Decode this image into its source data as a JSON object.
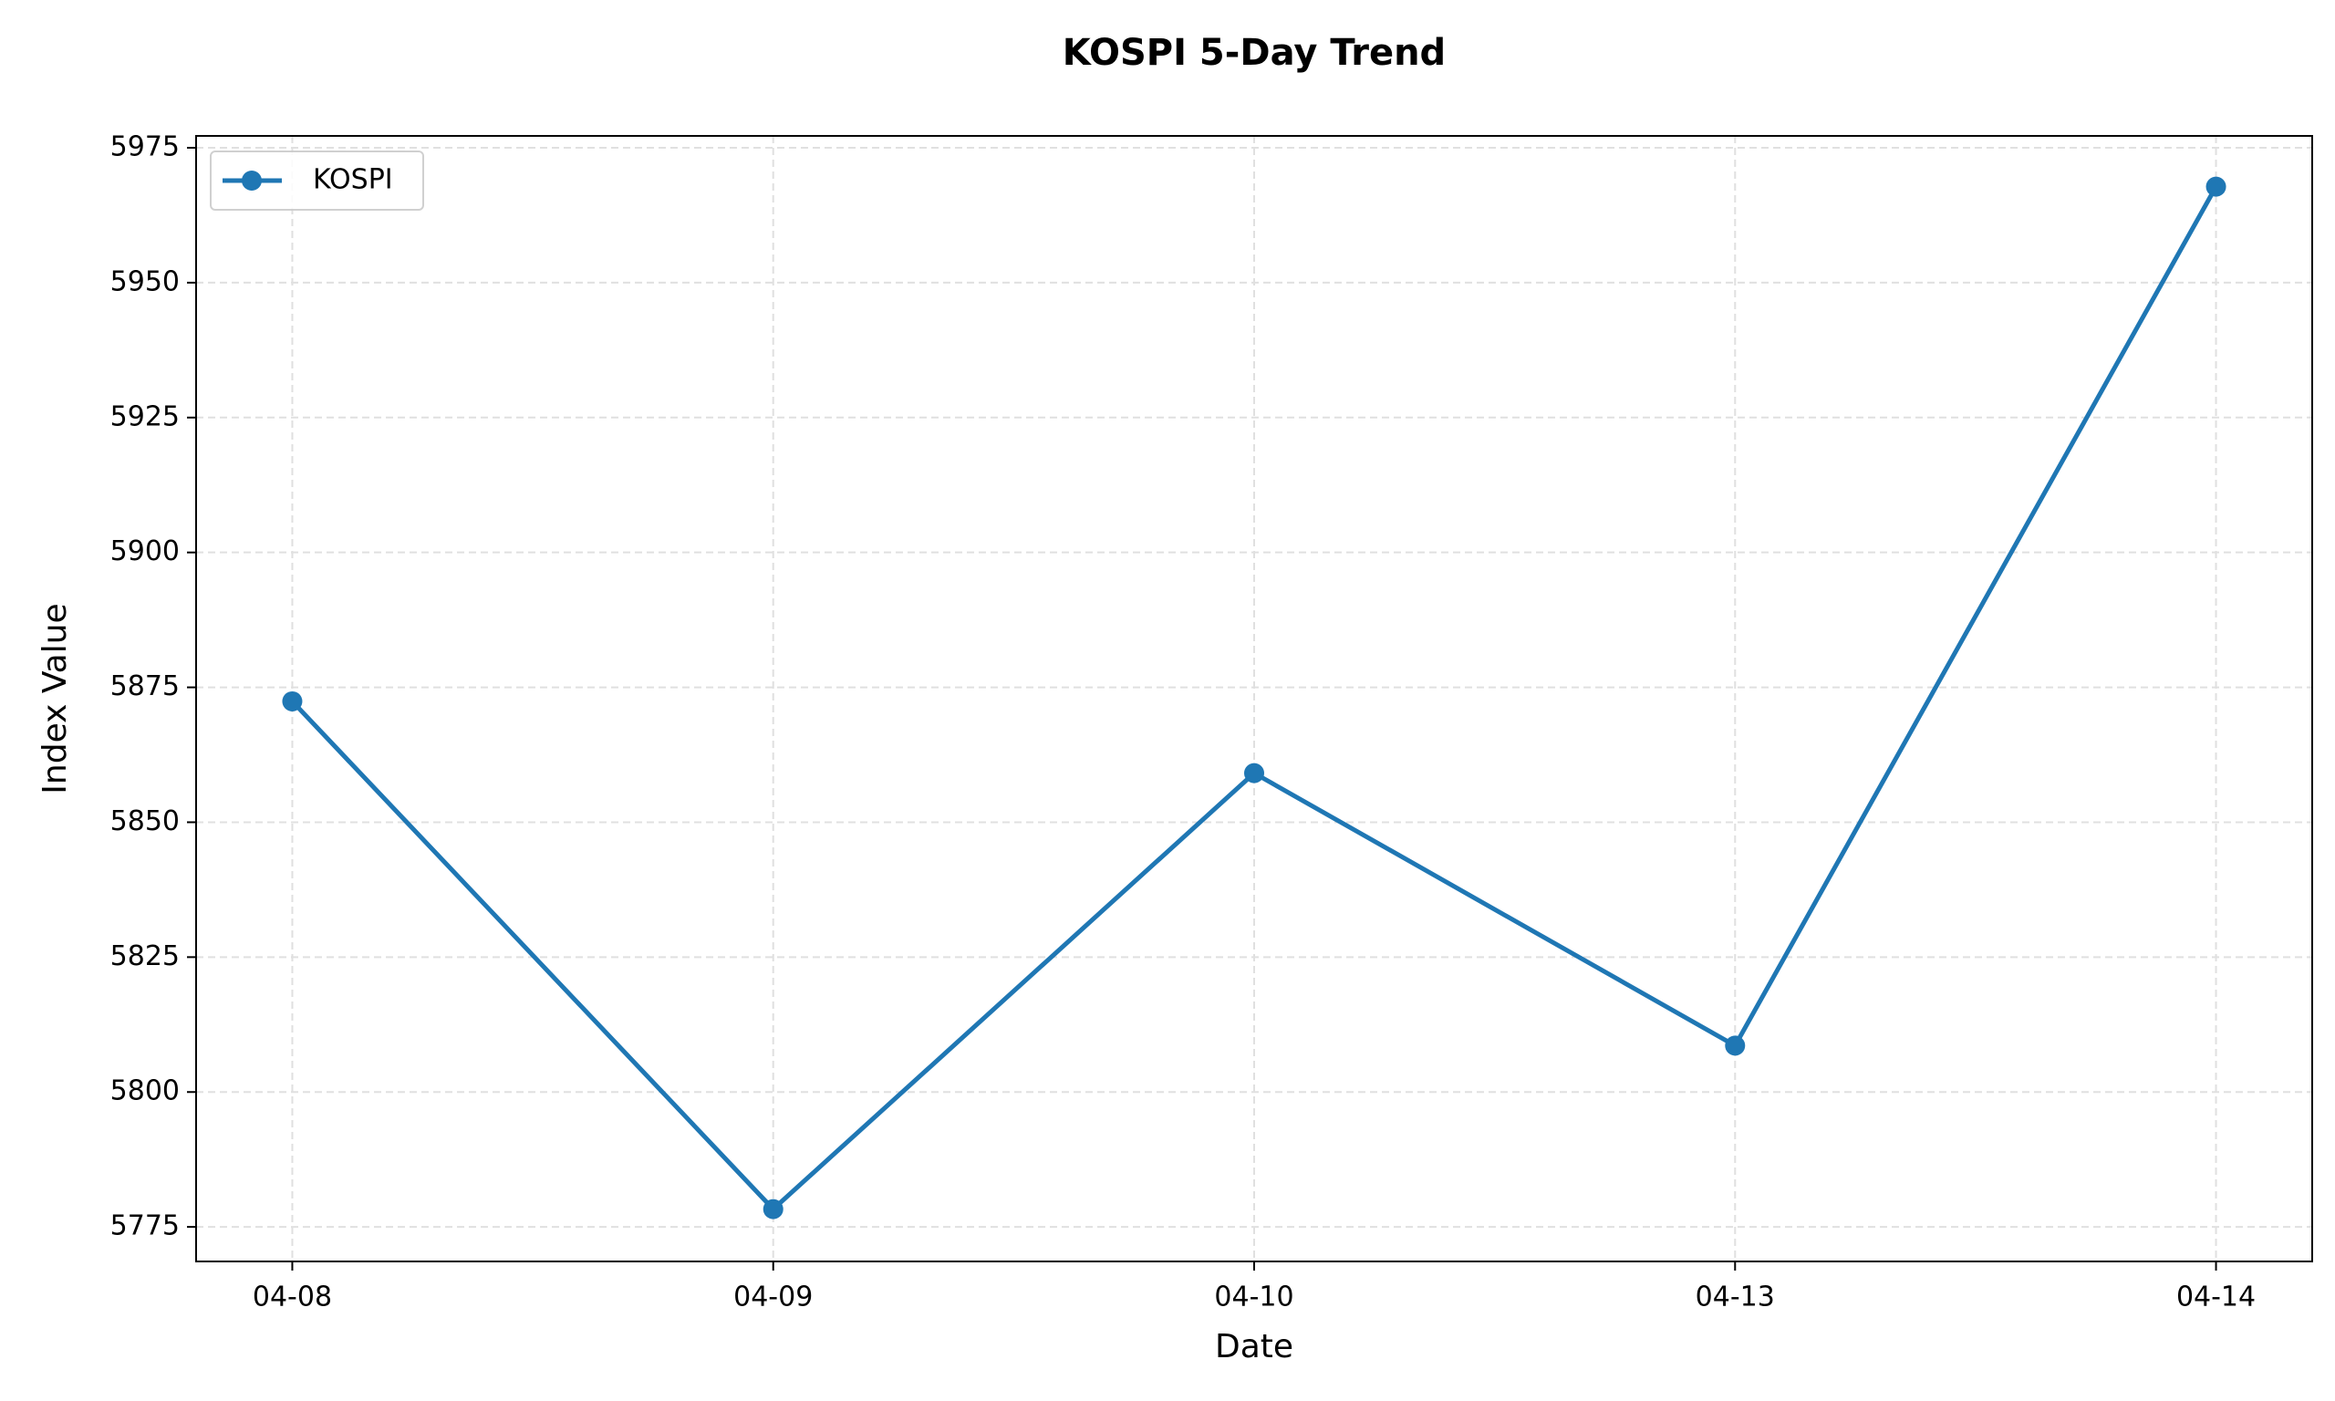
{
  "chart_data": {
    "type": "line",
    "title": "KOSPI 5-Day Trend",
    "x_label": "Date",
    "y_label": "Index Value",
    "categories": [
      "04-08",
      "04-09",
      "04-10",
      "04-13",
      "04-14"
    ],
    "series": [
      {
        "name": "KOSPI",
        "color": "#1f77b4",
        "values": [
          5872.4,
          5778.3,
          5859.1,
          5808.6,
          5967.8
        ]
      }
    ],
    "ylim": [
      5768.6,
      5977.2
    ],
    "yticks": [
      5775,
      5800,
      5825,
      5850,
      5875,
      5900,
      5925,
      5950,
      5975
    ],
    "grid": true,
    "legend": "upper left"
  }
}
